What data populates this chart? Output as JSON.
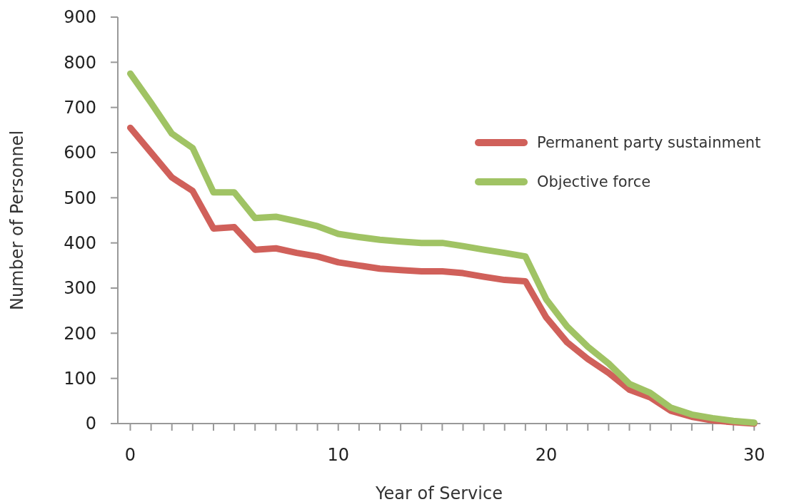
{
  "chart_data": {
    "type": "line",
    "xlabel": "Year of Service",
    "ylabel": "Number of Personnel",
    "x": [
      0,
      1,
      2,
      3,
      4,
      5,
      6,
      7,
      8,
      9,
      10,
      11,
      12,
      13,
      14,
      15,
      16,
      17,
      18,
      19,
      20,
      21,
      22,
      23,
      24,
      25,
      26,
      27,
      28,
      29,
      30
    ],
    "series": [
      {
        "name": "Permanent party sustainment",
        "color": "#d0605a",
        "values": [
          655,
          600,
          545,
          515,
          432,
          435,
          385,
          388,
          378,
          370,
          357,
          350,
          343,
          340,
          337,
          337,
          333,
          325,
          318,
          315,
          235,
          180,
          143,
          112,
          75,
          58,
          28,
          15,
          7,
          3,
          0
        ]
      },
      {
        "name": "Objective force",
        "color": "#a0c364",
        "values": [
          775,
          710,
          642,
          610,
          512,
          512,
          455,
          458,
          448,
          437,
          420,
          413,
          407,
          403,
          400,
          400,
          393,
          385,
          378,
          370,
          275,
          215,
          170,
          133,
          88,
          68,
          35,
          20,
          12,
          6,
          2
        ]
      }
    ],
    "xlim": [
      -0.6,
      30.3
    ],
    "ylim": [
      0,
      900
    ],
    "xticks": [
      0,
      {
        "value": 1,
        "label": null
      },
      {
        "value": 2,
        "label": null
      },
      {
        "value": 3,
        "label": null
      },
      {
        "value": 4,
        "label": null
      },
      {
        "value": 5,
        "label": null
      },
      {
        "value": 6,
        "label": null
      },
      {
        "value": 7,
        "label": null
      },
      {
        "value": 8,
        "label": null
      },
      {
        "value": 9,
        "label": null
      },
      10,
      {
        "value": 11,
        "label": null
      },
      {
        "value": 12,
        "label": null
      },
      {
        "value": 13,
        "label": null
      },
      {
        "value": 14,
        "label": null
      },
      {
        "value": 15,
        "label": null
      },
      {
        "value": 16,
        "label": null
      },
      {
        "value": 17,
        "label": null
      },
      {
        "value": 18,
        "label": null
      },
      {
        "value": 19,
        "label": null
      },
      20,
      {
        "value": 21,
        "label": null
      },
      {
        "value": 22,
        "label": null
      },
      {
        "value": 23,
        "label": null
      },
      {
        "value": 24,
        "label": null
      },
      {
        "value": 25,
        "label": null
      },
      {
        "value": 26,
        "label": null
      },
      {
        "value": 27,
        "label": null
      },
      {
        "value": 28,
        "label": null
      },
      {
        "value": 29,
        "label": null
      },
      30
    ],
    "yticks": [
      0,
      100,
      200,
      300,
      400,
      500,
      600,
      700,
      800,
      900
    ],
    "grid": false,
    "legend": "right",
    "marker": "none",
    "line_style": "solid"
  }
}
